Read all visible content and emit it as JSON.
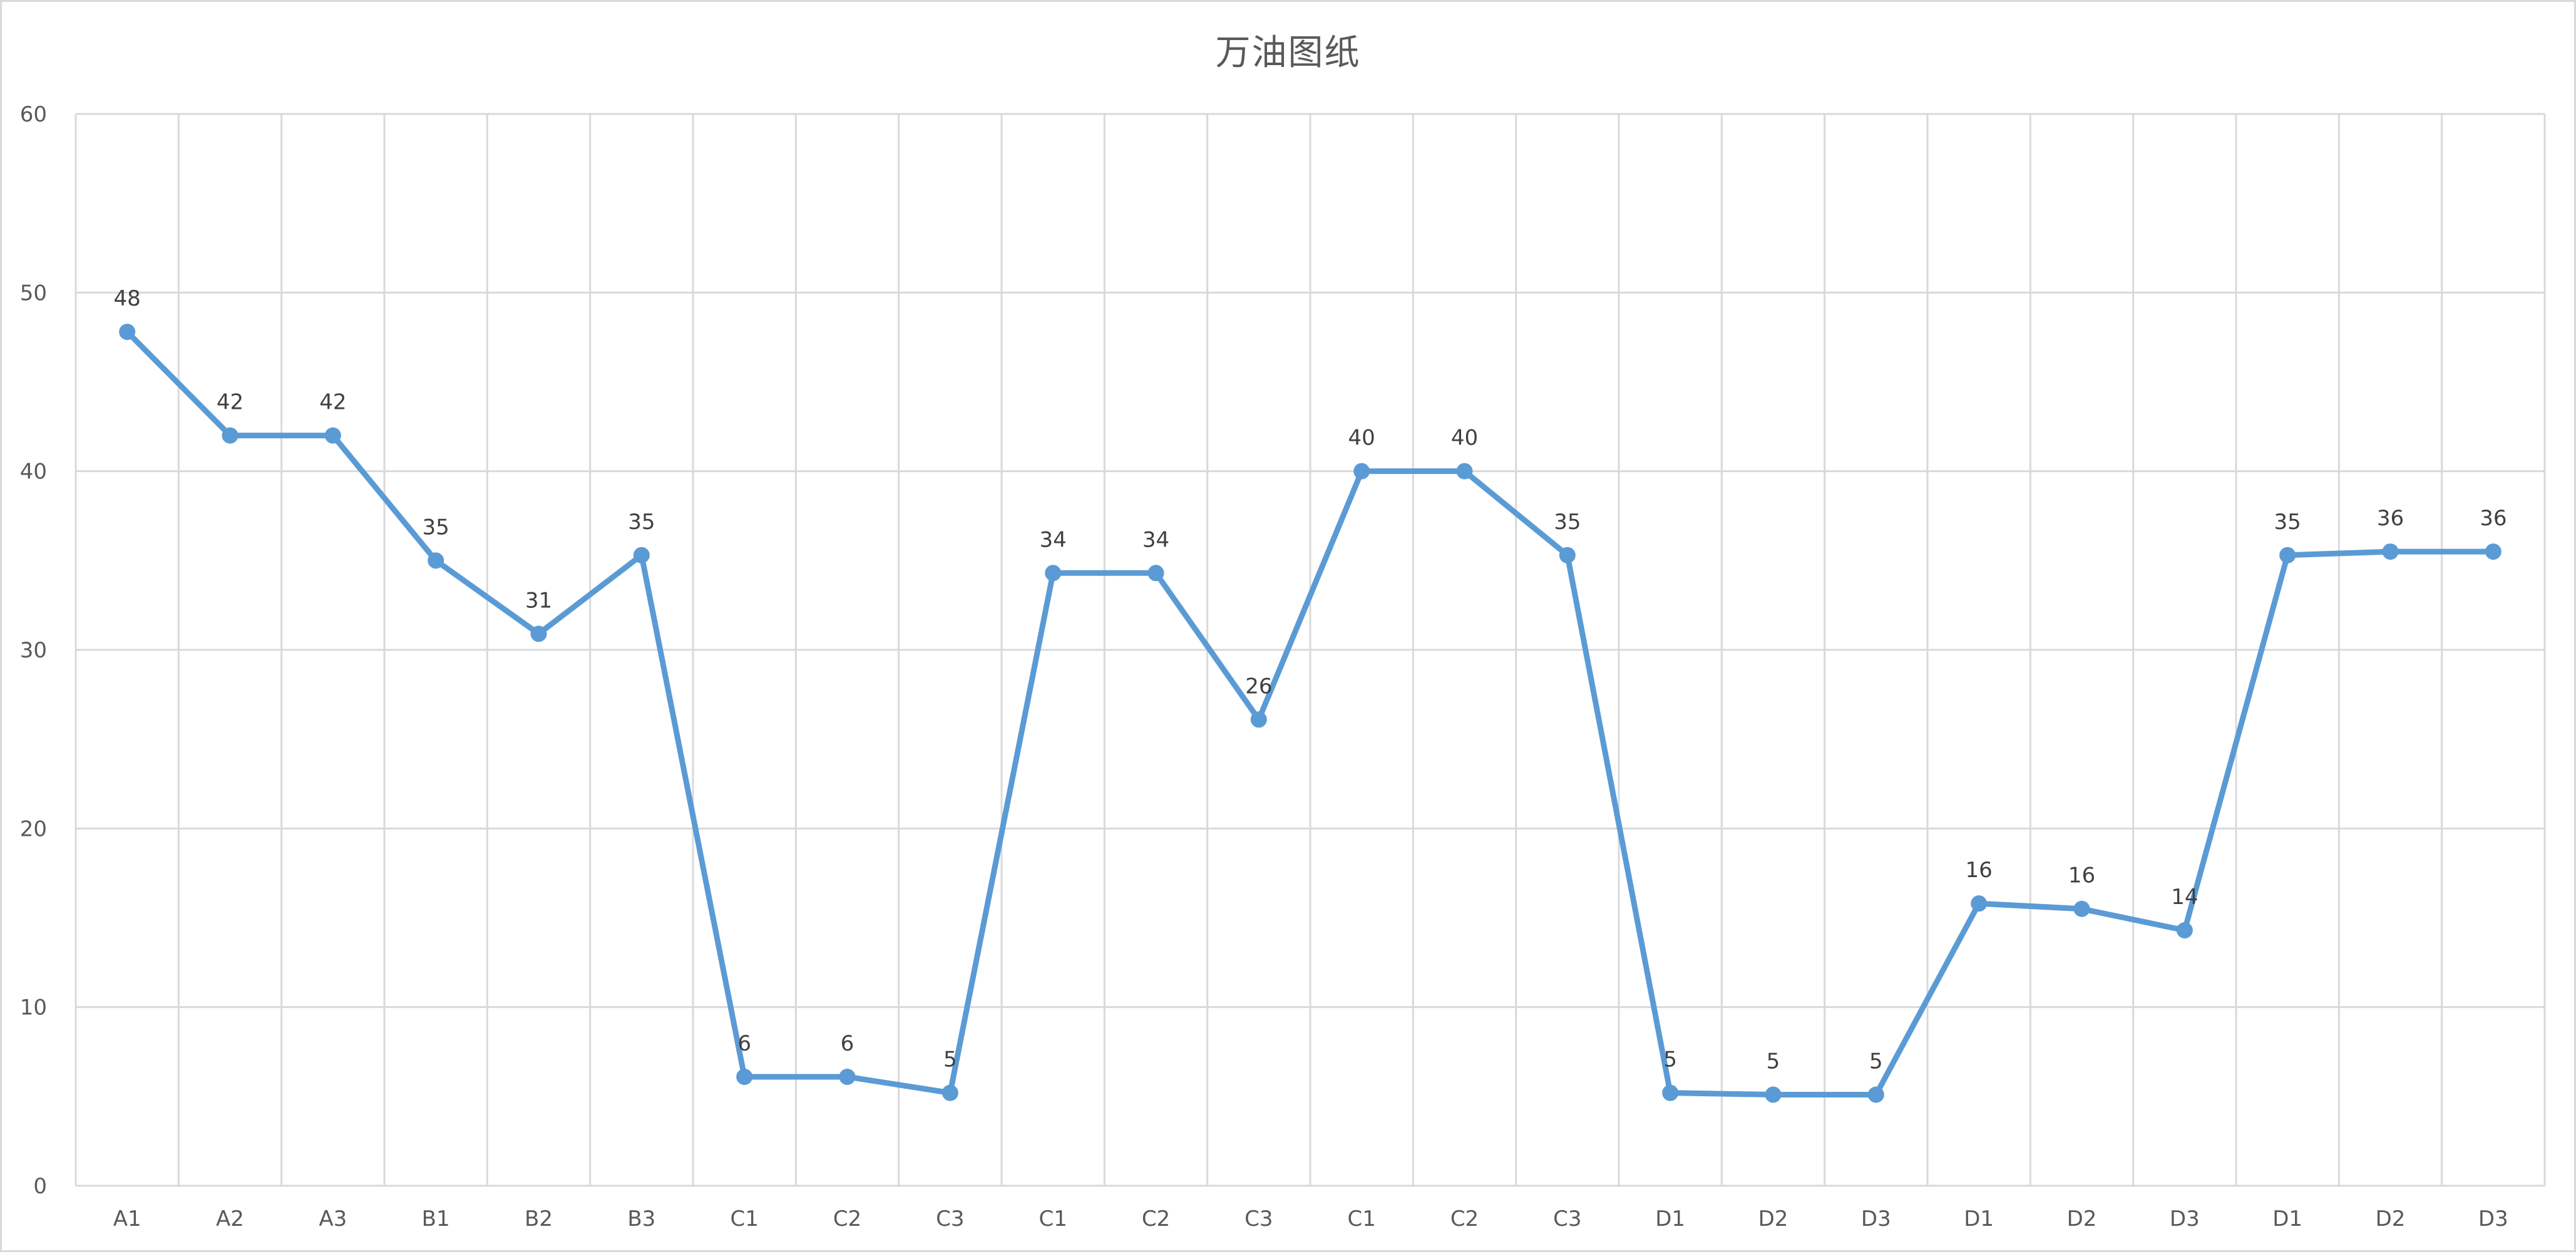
{
  "chart_data": {
    "type": "line",
    "title": "万油图纸",
    "xlabel": "",
    "ylabel": "",
    "ylim": [
      0,
      60
    ],
    "yticks": [
      0,
      10,
      20,
      30,
      40,
      50,
      60
    ],
    "grid": true,
    "legend": "none",
    "categories": [
      "A1",
      "A2",
      "A3",
      "B1",
      "B2",
      "B3",
      "C1",
      "C2",
      "C3",
      "C1",
      "C2",
      "C3",
      "C1",
      "C2",
      "C3",
      "D1",
      "D2",
      "D3",
      "D1",
      "D2",
      "D3",
      "D1",
      "D2",
      "D3"
    ],
    "series": [
      {
        "color": "#5b9bd5",
        "values": [
          47.8,
          42,
          42,
          35,
          30.9,
          35.3,
          6.1,
          6.1,
          5.2,
          34.3,
          34.3,
          26.1,
          40,
          40,
          35.3,
          5.2,
          5.1,
          5.1,
          15.8,
          15.5,
          14.3,
          35.3,
          35.5,
          35.5
        ],
        "labels": [
          "48",
          "42",
          "42",
          "35",
          "31",
          "35",
          "6",
          "6",
          "5",
          "34",
          "34",
          "26",
          "40",
          "40",
          "35",
          "5",
          "5",
          "5",
          "16",
          "16",
          "14",
          "35",
          "36",
          "36"
        ]
      }
    ]
  }
}
